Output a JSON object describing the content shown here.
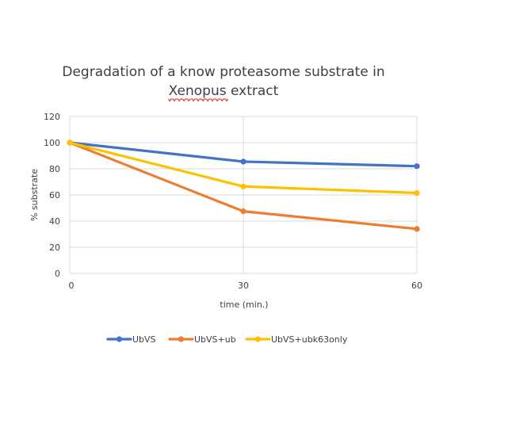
{
  "chart_data": {
    "type": "line",
    "title": "Degradation of a know proteasome substrate in Xenopus extract",
    "title_lines": [
      "Degradation of a know proteasome substrate in",
      "Xenopus extract"
    ],
    "spellcheck_underlined_word": "Xenopus",
    "xlabel": "time (min.)",
    "ylabel": "% substrate",
    "x": [
      0,
      30,
      60
    ],
    "x_tick_labels": [
      "0",
      "30",
      "60"
    ],
    "ylim": [
      0,
      120
    ],
    "y_ticks": [
      0,
      20,
      40,
      60,
      80,
      100,
      120
    ],
    "y_tick_labels": [
      "0",
      "20",
      "40",
      "60",
      "80",
      "100",
      "120"
    ],
    "grid": true,
    "legend_position": "bottom",
    "series": [
      {
        "name": "UbVS",
        "values": [
          100,
          85.5,
          82
        ],
        "color": "#4472c4"
      },
      {
        "name": "UbVS+ub",
        "values": [
          100,
          47.5,
          34
        ],
        "color": "#ed7d31"
      },
      {
        "name": "UbVS+ubk63only",
        "values": [
          100,
          66.5,
          61.5
        ],
        "color": "#ffc000"
      }
    ]
  }
}
